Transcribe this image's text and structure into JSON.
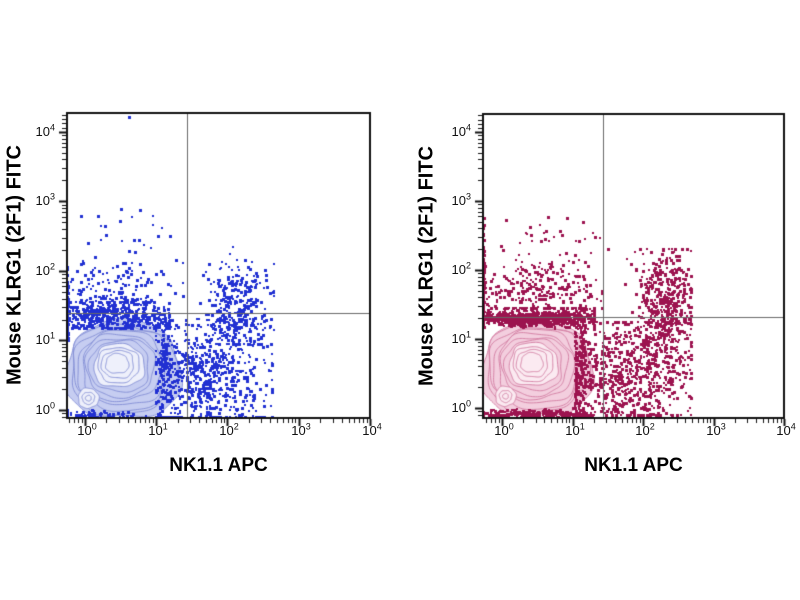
{
  "page": {
    "background": "#ffffff"
  },
  "chart_data": [
    {
      "type": "scatter",
      "subtype": "flow-cytometry-contour-density",
      "panel": "left",
      "xlabel": "NK1.1 APC",
      "ylabel": "Mouse KLRG1 (2F1) FITC",
      "x_scale": "log10",
      "y_scale": "log10",
      "xlim_log": [
        -0.25,
        4.0
      ],
      "ylim_log": [
        -0.115,
        4.27
      ],
      "ticks_exp": [
        0,
        1,
        2,
        3,
        4
      ],
      "grid": false,
      "legend": null,
      "quadrant_gate": {
        "x_log": 1.44,
        "y_log": 1.4,
        "x_value": 27.5,
        "y_value": 25.1
      },
      "colors": {
        "dots": "#2130d2",
        "contour_line": "#8893d8",
        "contour_fill": "#c6cdf1",
        "contour_inner": "#eef0fb",
        "gate": "#686868",
        "frame": "#111111"
      },
      "contour_population": {
        "name": "double-negative-main-population",
        "center_log": [
          0.54,
          0.57
        ],
        "half_extent_log": [
          0.8,
          0.7
        ],
        "peak_log": [
          0.45,
          0.67
        ],
        "rings": 11,
        "squareness": 2.4
      },
      "contour_small": {
        "name": "sub-population",
        "center_log": [
          0.05,
          0.17
        ],
        "radius_log": 0.145,
        "rings": 3
      },
      "scatter_clusters": [
        {
          "name": "klrg1-low-band",
          "n": 560,
          "x": {
            "mu": 0.32,
            "sigma": 0.5,
            "min": -0.25,
            "max": 1.18
          },
          "y": {
            "mu": 1.33,
            "sigma": 0.12,
            "min": 1.18,
            "max": 1.62
          }
        },
        {
          "name": "klrg1-pos-nk11-neg",
          "n": 150,
          "x": {
            "mu": 0.45,
            "sigma": 0.42,
            "min": -0.25,
            "max": 1.38
          },
          "y": {
            "mu": 1.8,
            "sigma": 0.26,
            "min": 1.55,
            "max": 2.45
          }
        },
        {
          "name": "klrg1-high-sparse",
          "n": 12,
          "x": {
            "mu": 0.55,
            "sigma": 0.35,
            "min": -0.2,
            "max": 1.2
          },
          "y": {
            "mu": 2.62,
            "sigma": 0.16,
            "min": 2.45,
            "max": 2.95
          }
        },
        {
          "name": "nk11-pos-klrg1-neg-cloud",
          "n": 620,
          "x": {
            "mu": 1.72,
            "sigma": 0.4,
            "min": 1.0,
            "max": 2.62
          },
          "y": {
            "mu": 0.5,
            "sigma": 0.4,
            "min": -0.1,
            "max": 1.3
          }
        },
        {
          "name": "strip-right-of-main",
          "n": 150,
          "x": {
            "mu": 1.12,
            "sigma": 0.06,
            "min": 1.02,
            "max": 1.28
          },
          "y": {
            "mu": 0.55,
            "sigma": 0.45,
            "min": -0.1,
            "max": 1.4
          }
        },
        {
          "name": "nk11-pos-klrg1-pos-cluster",
          "n": 330,
          "x": {
            "mu": 2.12,
            "sigma": 0.22,
            "min": 1.5,
            "max": 2.65
          },
          "y": {
            "mu": 1.45,
            "sigma": 0.33,
            "min": 0.95,
            "max": 2.35
          }
        },
        {
          "name": "left-edge-pileup",
          "n": 100,
          "x": {
            "mu": -0.25,
            "sigma": 0.008,
            "min": -0.25,
            "max": -0.2
          },
          "y": {
            "mu": 1.35,
            "sigma": 0.35,
            "min": 1.0,
            "max": 2.4
          }
        },
        {
          "name": "bottom-edge-pileup",
          "n": 90,
          "x": {
            "mu": 0.1,
            "sigma": 0.3,
            "min": -0.25,
            "max": 0.9
          },
          "y": {
            "mu": -0.07,
            "sigma": 0.03,
            "min": -0.115,
            "max": 0.0
          }
        }
      ],
      "outliers_log": [
        [
          0.62,
          4.21
        ],
        [
          0.78,
          2.87
        ],
        [
          1.02,
          2.5
        ],
        [
          0.3,
          2.52
        ],
        [
          1.28,
          2.15
        ],
        [
          0.05,
          2.4
        ]
      ]
    },
    {
      "type": "scatter",
      "subtype": "flow-cytometry-contour-density",
      "panel": "right",
      "xlabel": "NK1.1 APC",
      "ylabel": "Mouse KLRG1 (2F1) FITC",
      "x_scale": "log10",
      "y_scale": "log10",
      "xlim_log": [
        -0.27,
        4.0
      ],
      "ylim_log": [
        -0.145,
        4.26
      ],
      "ticks_exp": [
        0,
        1,
        2,
        3,
        4
      ],
      "grid": false,
      "legend": null,
      "quadrant_gate": {
        "x_log": 1.43,
        "y_log": 1.32,
        "x_value": 26.9,
        "y_value": 20.9
      },
      "colors": {
        "dots": "#9c134f",
        "contour_line": "#d683a7",
        "contour_fill": "#f3cede",
        "contour_inner": "#fbeaf1",
        "gate": "#686868",
        "frame": "#111111"
      },
      "contour_population": {
        "name": "double-negative-main-population",
        "center_log": [
          0.5,
          0.57
        ],
        "half_extent_log": [
          0.78,
          0.7
        ],
        "peak_log": [
          0.42,
          0.66
        ],
        "rings": 11,
        "squareness": 2.4
      },
      "contour_small": {
        "name": "sub-population",
        "center_log": [
          0.05,
          0.17
        ],
        "radius_log": 0.145,
        "rings": 3
      },
      "scatter_clusters": [
        {
          "name": "gate-line-dense-band",
          "n": 850,
          "x": {
            "mu": 0.4,
            "sigma": 0.55,
            "min": -0.27,
            "max": 1.3
          },
          "y": {
            "mu": 1.3,
            "sigma": 0.055,
            "min": 1.15,
            "max": 1.45
          }
        },
        {
          "name": "klrg1-pos-nk11-neg",
          "n": 300,
          "x": {
            "mu": 0.5,
            "sigma": 0.45,
            "min": -0.27,
            "max": 1.42
          },
          "y": {
            "mu": 1.72,
            "sigma": 0.24,
            "min": 1.45,
            "max": 2.42
          }
        },
        {
          "name": "klrg1-high-sparse",
          "n": 18,
          "x": {
            "mu": 0.7,
            "sigma": 0.4,
            "min": -0.2,
            "max": 1.5
          },
          "y": {
            "mu": 2.55,
            "sigma": 0.13,
            "min": 2.42,
            "max": 2.8
          }
        },
        {
          "name": "nk11-pos-klrg1-neg-cloud",
          "n": 680,
          "x": {
            "mu": 1.8,
            "sigma": 0.45,
            "min": 1.05,
            "max": 2.68
          },
          "y": {
            "mu": 0.5,
            "sigma": 0.42,
            "min": -0.1,
            "max": 1.25
          }
        },
        {
          "name": "strip-right-of-main",
          "n": 180,
          "x": {
            "mu": 1.13,
            "sigma": 0.06,
            "min": 1.03,
            "max": 1.3
          },
          "y": {
            "mu": 0.6,
            "sigma": 0.5,
            "min": -0.1,
            "max": 1.45
          }
        },
        {
          "name": "nk11-pos-klrg1-pos-cluster",
          "n": 520,
          "x": {
            "mu": 2.32,
            "sigma": 0.2,
            "min": 1.75,
            "max": 2.68
          },
          "y": {
            "mu": 1.45,
            "sigma": 0.45,
            "min": 0.1,
            "max": 2.3
          }
        },
        {
          "name": "left-edge-pileup",
          "n": 160,
          "x": {
            "mu": -0.27,
            "sigma": 0.008,
            "min": -0.27,
            "max": -0.22
          },
          "y": {
            "mu": 1.75,
            "sigma": 0.45,
            "min": 1.3,
            "max": 2.75
          }
        },
        {
          "name": "bottom-edge-pileup",
          "n": 260,
          "x": {
            "mu": 0.5,
            "sigma": 0.5,
            "min": -0.27,
            "max": 1.15
          },
          "y": {
            "mu": -0.08,
            "sigma": 0.03,
            "min": -0.145,
            "max": 0.0
          }
        }
      ],
      "outliers_log": [
        [
          0.92,
          2.76
        ],
        [
          1.15,
          2.7
        ],
        [
          0.4,
          2.62
        ],
        [
          0.05,
          2.72
        ],
        [
          1.32,
          2.48
        ],
        [
          0.62,
          2.56
        ],
        [
          1.5,
          2.3
        ]
      ]
    }
  ]
}
